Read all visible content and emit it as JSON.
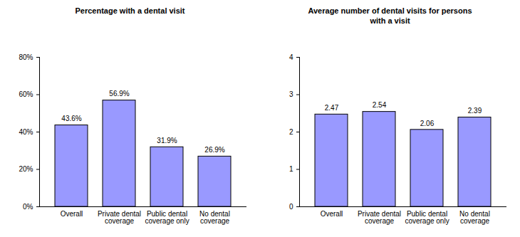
{
  "chart_data": [
    {
      "type": "bar",
      "title": "Percentage with a dental visit",
      "categories": [
        "Overall",
        "Private dental coverage",
        "Public dental coverage only",
        "No dental coverage"
      ],
      "values": [
        43.6,
        56.9,
        31.9,
        26.9
      ],
      "value_labels": [
        "43.6%",
        "56.9%",
        "31.9%",
        "26.9%"
      ],
      "color": "#9999ff",
      "ylim": [
        0,
        80
      ],
      "yticks": [
        {
          "value": 0,
          "label": "0%"
        },
        {
          "value": 20,
          "label": "20%"
        },
        {
          "value": 40,
          "label": "40%"
        },
        {
          "value": 60,
          "label": "60%"
        },
        {
          "value": 80,
          "label": "80%"
        }
      ],
      "data_labels": true,
      "grid": false
    },
    {
      "type": "bar",
      "title": "Average number of dental visits for persons with a visit",
      "categories": [
        "Overall",
        "Private dental coverage",
        "Public dental coverage only",
        "No dental coverage"
      ],
      "values": [
        2.47,
        2.54,
        2.06,
        2.39
      ],
      "color": "#9999ff",
      "ylim": [
        0,
        4
      ],
      "yticks": [
        0,
        1,
        2,
        3,
        4
      ],
      "data_labels": true,
      "grid": false
    }
  ]
}
